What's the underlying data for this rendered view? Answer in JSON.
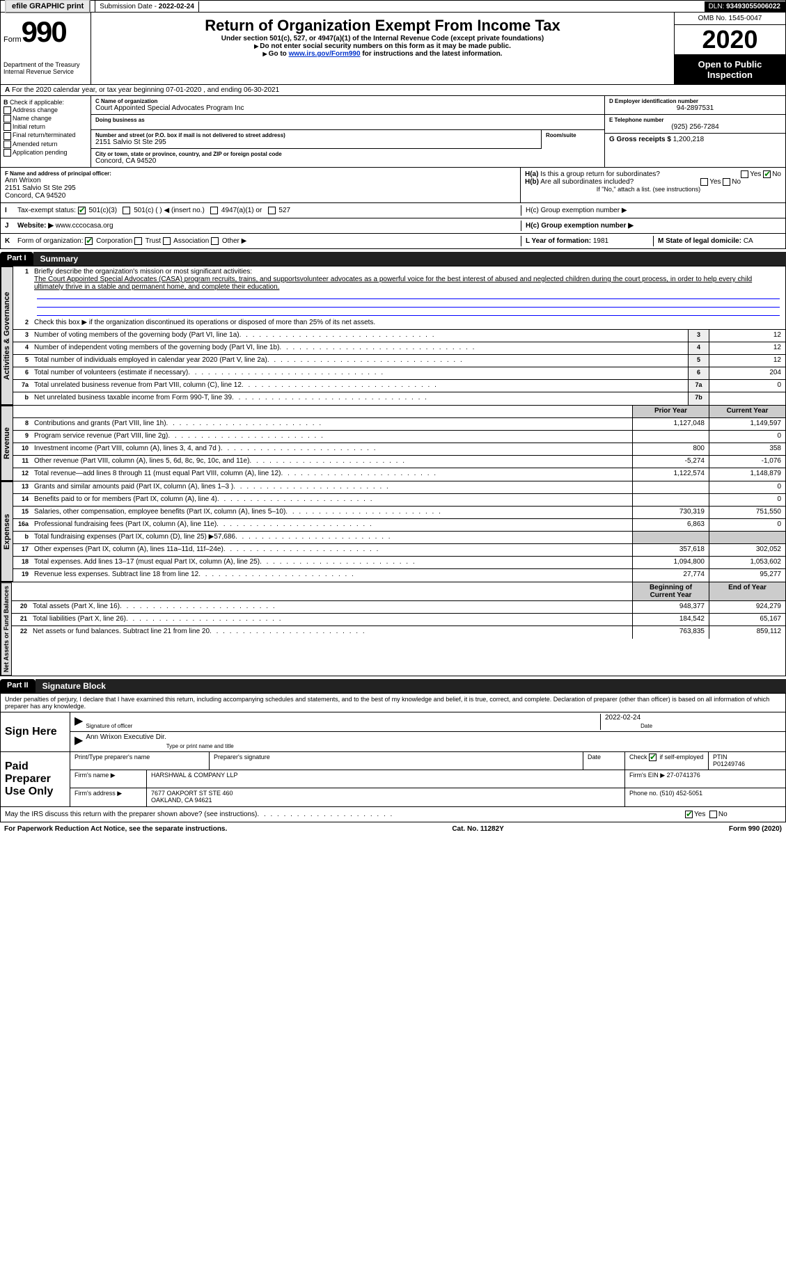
{
  "topbar": {
    "efile": "efile GRAPHIC print",
    "submission_lbl": "Submission Date - ",
    "submission_date": "2022-02-24",
    "dln_lbl": "DLN: ",
    "dln": "93493055006022"
  },
  "header": {
    "form_word": "Form",
    "form_num": "990",
    "dept": "Department of the Treasury\nInternal Revenue Service",
    "title": "Return of Organization Exempt From Income Tax",
    "subtitle": "Under section 501(c), 527, or 4947(a)(1) of the Internal Revenue Code (except private foundations)",
    "instruct1": "Do not enter social security numbers on this form as it may be made public.",
    "instruct2_pre": "Go to ",
    "instruct2_link": "www.irs.gov/Form990",
    "instruct2_post": " for instructions and the latest information.",
    "omb": "OMB No. 1545-0047",
    "year": "2020",
    "public": "Open to Public Inspection"
  },
  "row_a": "For the 2020 calendar year, or tax year beginning 07-01-2020   , and ending 06-30-2021",
  "box_b": {
    "lbl": "Check if applicable:",
    "items": [
      "Address change",
      "Name change",
      "Initial return",
      "Final return/terminated",
      "Amended return",
      "Application pending"
    ],
    "checked": []
  },
  "box_c": {
    "name_lbl": "C Name of organization",
    "name": "Court Appointed Special Advocates Program Inc",
    "dba_lbl": "Doing business as",
    "dba": "",
    "street_lbl": "Number and street (or P.O. box if mail is not delivered to street address)",
    "street": "2151 Salvio St Ste 295",
    "room_lbl": "Room/suite",
    "room": "",
    "city_lbl": "City or town, state or province, country, and ZIP or foreign postal code",
    "city": "Concord, CA  94520"
  },
  "box_d": {
    "lbl": "D Employer identification number",
    "val": "94-2897531"
  },
  "box_e": {
    "lbl": "E Telephone number",
    "val": "(925) 256-7284"
  },
  "box_g": {
    "lbl": "G Gross receipts $ ",
    "val": "1,200,218"
  },
  "box_f": {
    "lbl": "F  Name and address of principal officer:",
    "name": "Ann Wrixon",
    "addr1": "2151 Salvio St Ste 295",
    "addr2": "Concord, CA  94520"
  },
  "box_h": {
    "a_lbl": "H(a)  Is this a group return for subordinates?",
    "a_yes": "Yes",
    "a_no": "No",
    "a_checked": "No",
    "b_lbl": "H(b)  Are all subordinates included?",
    "b_yes": "Yes",
    "b_no": "No",
    "b_note": "If \"No,\" attach a list. (see instructions)",
    "c_lbl": "H(c)  Group exemption number ▶"
  },
  "row_i": {
    "lbl": "Tax-exempt status:",
    "opts": [
      "501(c)(3)",
      "501(c) (  ) ◀ (insert no.)",
      "4947(a)(1) or",
      "527"
    ],
    "checked": "501(c)(3)"
  },
  "row_j": {
    "lbl": "Website: ▶",
    "val": "www.cccocasa.org"
  },
  "row_k": {
    "lbl": "Form of organization:",
    "opts": [
      "Corporation",
      "Trust",
      "Association",
      "Other ▶"
    ],
    "checked": "Corporation"
  },
  "row_l": {
    "lbl": "L Year of formation: ",
    "val": "1981"
  },
  "row_m": {
    "lbl": "M State of legal domicile: ",
    "val": "CA"
  },
  "part1": {
    "hdr": "Part I",
    "title": "Summary"
  },
  "summary": {
    "mission_lbl": "Briefly describe the organization's mission or most significant activities:",
    "mission": "The Court Appointed Special Advocates (CASA) program recruits, trains, and supportsvolunteer advocates as a powerful voice for the best interest of abused and neglected children during the court process, in order to help every child ultimately thrive in a stable and permanent home, and complete their education.",
    "line2": "Check this box ▶    if the organization discontinued its operations or disposed of more than 25% of its net assets.",
    "tabs": {
      "gov": "Activities & Governance",
      "rev": "Revenue",
      "exp": "Expenses",
      "net": "Net Assets or Fund Balances"
    },
    "gov_lines": [
      {
        "n": "3",
        "d": "Number of voting members of the governing body (Part VI, line 1a)",
        "b": "3",
        "v": "12"
      },
      {
        "n": "4",
        "d": "Number of independent voting members of the governing body (Part VI, line 1b)",
        "b": "4",
        "v": "12"
      },
      {
        "n": "5",
        "d": "Total number of individuals employed in calendar year 2020 (Part V, line 2a)",
        "b": "5",
        "v": "12"
      },
      {
        "n": "6",
        "d": "Total number of volunteers (estimate if necessary)",
        "b": "6",
        "v": "204"
      },
      {
        "n": "7a",
        "d": "Total unrelated business revenue from Part VIII, column (C), line 12",
        "b": "7a",
        "v": "0"
      },
      {
        "n": "b",
        "d": "Net unrelated business taxable income from Form 990-T, line 39",
        "b": "7b",
        "v": ""
      }
    ],
    "col_hdr_prior": "Prior Year",
    "col_hdr_current": "Current Year",
    "rev_lines": [
      {
        "n": "8",
        "d": "Contributions and grants (Part VIII, line 1h)",
        "p": "1,127,048",
        "c": "1,149,597"
      },
      {
        "n": "9",
        "d": "Program service revenue (Part VIII, line 2g)",
        "p": "",
        "c": "0"
      },
      {
        "n": "10",
        "d": "Investment income (Part VIII, column (A), lines 3, 4, and 7d )",
        "p": "800",
        "c": "358"
      },
      {
        "n": "11",
        "d": "Other revenue (Part VIII, column (A), lines 5, 6d, 8c, 9c, 10c, and 11e)",
        "p": "-5,274",
        "c": "-1,076"
      },
      {
        "n": "12",
        "d": "Total revenue—add lines 8 through 11 (must equal Part VIII, column (A), line 12)",
        "p": "1,122,574",
        "c": "1,148,879"
      }
    ],
    "exp_lines": [
      {
        "n": "13",
        "d": "Grants and similar amounts paid (Part IX, column (A), lines 1–3 )",
        "p": "",
        "c": "0"
      },
      {
        "n": "14",
        "d": "Benefits paid to or for members (Part IX, column (A), line 4)",
        "p": "",
        "c": "0"
      },
      {
        "n": "15",
        "d": "Salaries, other compensation, employee benefits (Part IX, column (A), lines 5–10)",
        "p": "730,319",
        "c": "751,550"
      },
      {
        "n": "16a",
        "d": "Professional fundraising fees (Part IX, column (A), line 11e)",
        "p": "6,863",
        "c": "0"
      },
      {
        "n": "b",
        "d": "Total fundraising expenses (Part IX, column (D), line 25) ▶57,686",
        "p": "—shade—",
        "c": "—shade—"
      },
      {
        "n": "17",
        "d": "Other expenses (Part IX, column (A), lines 11a–11d, 11f–24e)",
        "p": "357,618",
        "c": "302,052"
      },
      {
        "n": "18",
        "d": "Total expenses. Add lines 13–17 (must equal Part IX, column (A), line 25)",
        "p": "1,094,800",
        "c": "1,053,602"
      },
      {
        "n": "19",
        "d": "Revenue less expenses. Subtract line 18 from line 12",
        "p": "27,774",
        "c": "95,277"
      }
    ],
    "col_hdr_begin": "Beginning of Current Year",
    "col_hdr_end": "End of Year",
    "net_lines": [
      {
        "n": "20",
        "d": "Total assets (Part X, line 16)",
        "p": "948,377",
        "c": "924,279"
      },
      {
        "n": "21",
        "d": "Total liabilities (Part X, line 26)",
        "p": "184,542",
        "c": "65,167"
      },
      {
        "n": "22",
        "d": "Net assets or fund balances. Subtract line 21 from line 20",
        "p": "763,835",
        "c": "859,112"
      }
    ]
  },
  "part2": {
    "hdr": "Part II",
    "title": "Signature Block"
  },
  "sig": {
    "decl": "Under penalties of perjury, I declare that I have examined this return, including accompanying schedules and statements, and to the best of my knowledge and belief, it is true, correct, and complete. Declaration of preparer (other than officer) is based on all information of which preparer has any knowledge.",
    "sign_here": "Sign Here",
    "sig_officer": "Signature of officer",
    "sig_date": "2022-02-24",
    "date_lbl": "Date",
    "name_title": "Ann Wrixon  Executive Dir.",
    "name_title_lbl": "Type or print name and title",
    "paid": "Paid Preparer Use Only",
    "prep_name_lbl": "Print/Type preparer's name",
    "prep_sig_lbl": "Preparer's signature",
    "prep_date_lbl": "Date",
    "self_emp": "Check        if self-employed",
    "ptin_lbl": "PTIN",
    "ptin": "P01249746",
    "firm_name_lbl": "Firm's name   ▶",
    "firm_name": "HARSHWAL & COMPANY LLP",
    "firm_ein_lbl": "Firm's EIN ▶",
    "firm_ein": "27-0741376",
    "firm_addr_lbl": "Firm's address ▶",
    "firm_addr": "7677 OAKPORT ST STE 460\nOAKLAND, CA  94621",
    "firm_phone_lbl": "Phone no. ",
    "firm_phone": "(510) 452-5051",
    "discuss": "May the IRS discuss this return with the preparer shown above? (see instructions)",
    "discuss_yes": "Yes",
    "discuss_no": "No",
    "discuss_checked": "Yes"
  },
  "footer": {
    "pra": "For Paperwork Reduction Act Notice, see the separate instructions.",
    "cat": "Cat. No. 11282Y",
    "form": "Form 990 (2020)"
  }
}
